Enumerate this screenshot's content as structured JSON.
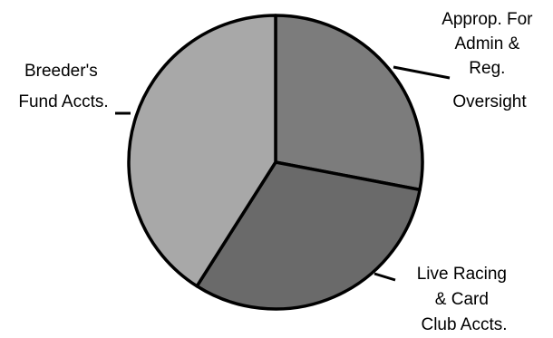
{
  "chart_data": {
    "type": "pie",
    "title": "",
    "slices": [
      {
        "label_lines": [
          "Approp. For",
          "Admin &",
          "Reg.",
          "Oversight"
        ],
        "value": 28,
        "color": "#7c7c7c"
      },
      {
        "label_lines": [
          "Live Racing",
          "& Card",
          "Club Accts."
        ],
        "value": 31,
        "color": "#6a6a6a"
      },
      {
        "label_lines": [
          "Breeder's",
          "Fund Accts."
        ],
        "value": 41,
        "color": "#a8a8a8"
      }
    ],
    "start_angle_deg": 0,
    "direction": "clockwise",
    "legend": "none"
  }
}
